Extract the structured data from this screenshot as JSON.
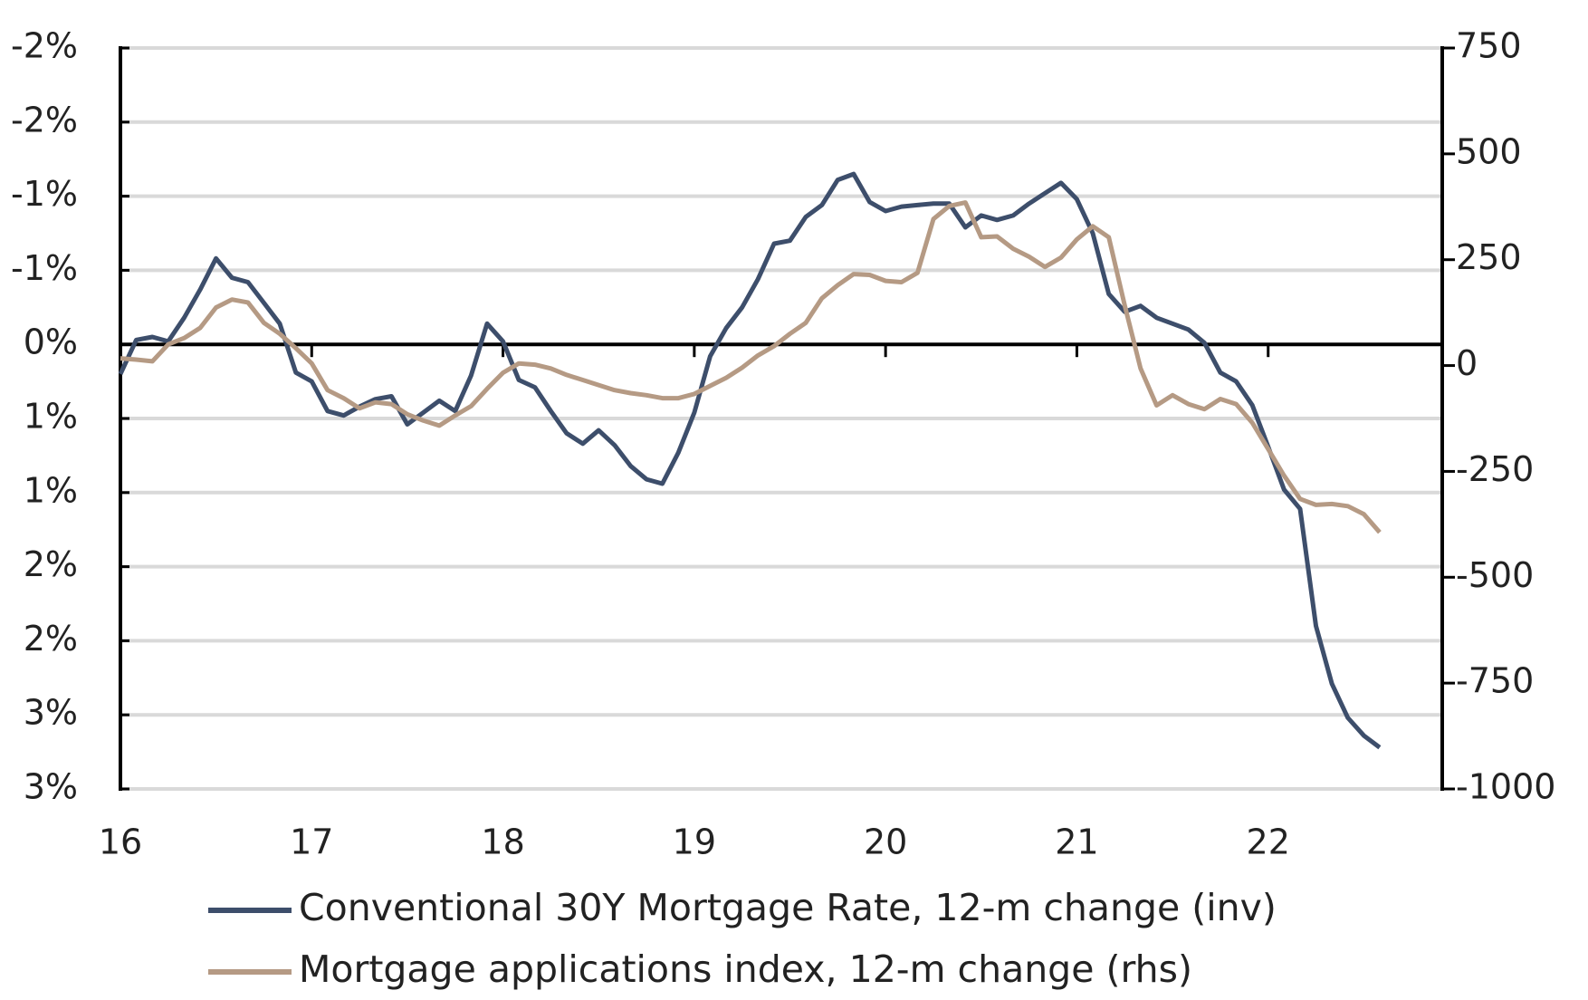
{
  "chart_data": {
    "type": "line",
    "x": [
      16,
      16.083,
      16.167,
      16.25,
      16.333,
      16.417,
      16.5,
      16.583,
      16.667,
      16.75,
      16.833,
      16.917,
      17,
      17.083,
      17.167,
      17.25,
      17.333,
      17.417,
      17.5,
      17.583,
      17.667,
      17.75,
      17.833,
      17.917,
      18,
      18.083,
      18.167,
      18.25,
      18.333,
      18.417,
      18.5,
      18.583,
      18.667,
      18.75,
      18.833,
      18.917,
      19,
      19.083,
      19.167,
      19.25,
      19.333,
      19.417,
      19.5,
      19.583,
      19.667,
      19.75,
      19.833,
      19.917,
      20,
      20.083,
      20.167,
      20.25,
      20.333,
      20.417,
      20.5,
      20.583,
      20.667,
      20.75,
      20.833,
      20.917,
      21,
      21.083,
      21.167,
      21.25,
      21.333,
      21.417,
      21.5,
      21.583,
      21.667,
      21.75,
      21.833,
      21.917,
      22,
      22.083,
      22.167,
      22.25,
      22.333,
      22.417,
      22.5,
      22.583
    ],
    "series": [
      {
        "name": "Conventional 30Y Mortgage Rate, 12-m change (inv)",
        "color": "#3d4e6b",
        "axis": "y",
        "values": [
          0.2,
          -0.03,
          -0.05,
          -0.02,
          -0.18,
          -0.37,
          -0.58,
          -0.45,
          -0.42,
          -0.28,
          -0.14,
          0.19,
          0.25,
          0.45,
          0.48,
          0.42,
          0.37,
          0.35,
          0.54,
          0.46,
          0.38,
          0.45,
          0.21,
          -0.14,
          -0.02,
          0.24,
          0.29,
          0.45,
          0.6,
          0.67,
          0.58,
          0.68,
          0.82,
          0.91,
          0.94,
          0.73,
          0.46,
          0.08,
          -0.11,
          -0.25,
          -0.44,
          -0.68,
          -0.7,
          -0.86,
          -0.94,
          -1.11,
          -1.15,
          -0.96,
          -0.9,
          -0.93,
          -0.94,
          -0.95,
          -0.95,
          -0.79,
          -0.87,
          -0.84,
          -0.87,
          -0.95,
          -1.02,
          -1.09,
          -0.98,
          -0.75,
          -0.34,
          -0.22,
          -0.26,
          -0.18,
          -0.14,
          -0.1,
          -0.01,
          0.19,
          0.25,
          0.41,
          0.69,
          0.98,
          1.11,
          1.9,
          2.29,
          2.52,
          2.64,
          2.72
        ]
      },
      {
        "name": "Mortgage applications index, 12-m change (rhs)",
        "color": "#b59a84",
        "axis": "y2",
        "values": [
          17,
          14,
          10,
          50,
          65,
          89,
          137,
          156,
          149,
          101,
          75,
          41,
          5,
          -58,
          -77,
          -101,
          -87,
          -91,
          -115,
          -130,
          -142,
          -118,
          -96,
          -55,
          -17,
          5,
          2,
          -7,
          -22,
          -34,
          -46,
          -58,
          -65,
          -70,
          -77,
          -77,
          -67,
          -48,
          -29,
          -5,
          24,
          46,
          75,
          101,
          159,
          190,
          216,
          214,
          200,
          197,
          219,
          346,
          377,
          385,
          303,
          305,
          276,
          257,
          233,
          255,
          298,
          329,
          303,
          142,
          -7,
          -94,
          -70,
          -91,
          -103,
          -79,
          -91,
          -135,
          -197,
          -260,
          -315,
          -329,
          -327,
          -332,
          -351,
          -394
        ]
      }
    ],
    "xlim": [
      16,
      22.91
    ],
    "xticks": [
      16,
      17,
      18,
      19,
      20,
      21,
      22
    ],
    "ylim": [
      -2,
      3
    ],
    "yinverted": true,
    "yticks": [
      {
        "value": -2,
        "label": "-2%"
      },
      {
        "value": -1.5,
        "label": "-2%"
      },
      {
        "value": -1,
        "label": "-1%"
      },
      {
        "value": -0.5,
        "label": "-1%"
      },
      {
        "value": 0,
        "label": "0%"
      },
      {
        "value": 0.5,
        "label": "1%"
      },
      {
        "value": 1,
        "label": "1%"
      },
      {
        "value": 1.5,
        "label": "2%"
      },
      {
        "value": 2,
        "label": "2%"
      },
      {
        "value": 2.5,
        "label": "3%"
      },
      {
        "value": 3,
        "label": "3%"
      }
    ],
    "y2lim": [
      -1000,
      750
    ],
    "y2ticks": [
      750,
      500,
      250,
      0,
      -250,
      -500,
      -750,
      -1000
    ],
    "grid": true,
    "legend": "bottom"
  }
}
